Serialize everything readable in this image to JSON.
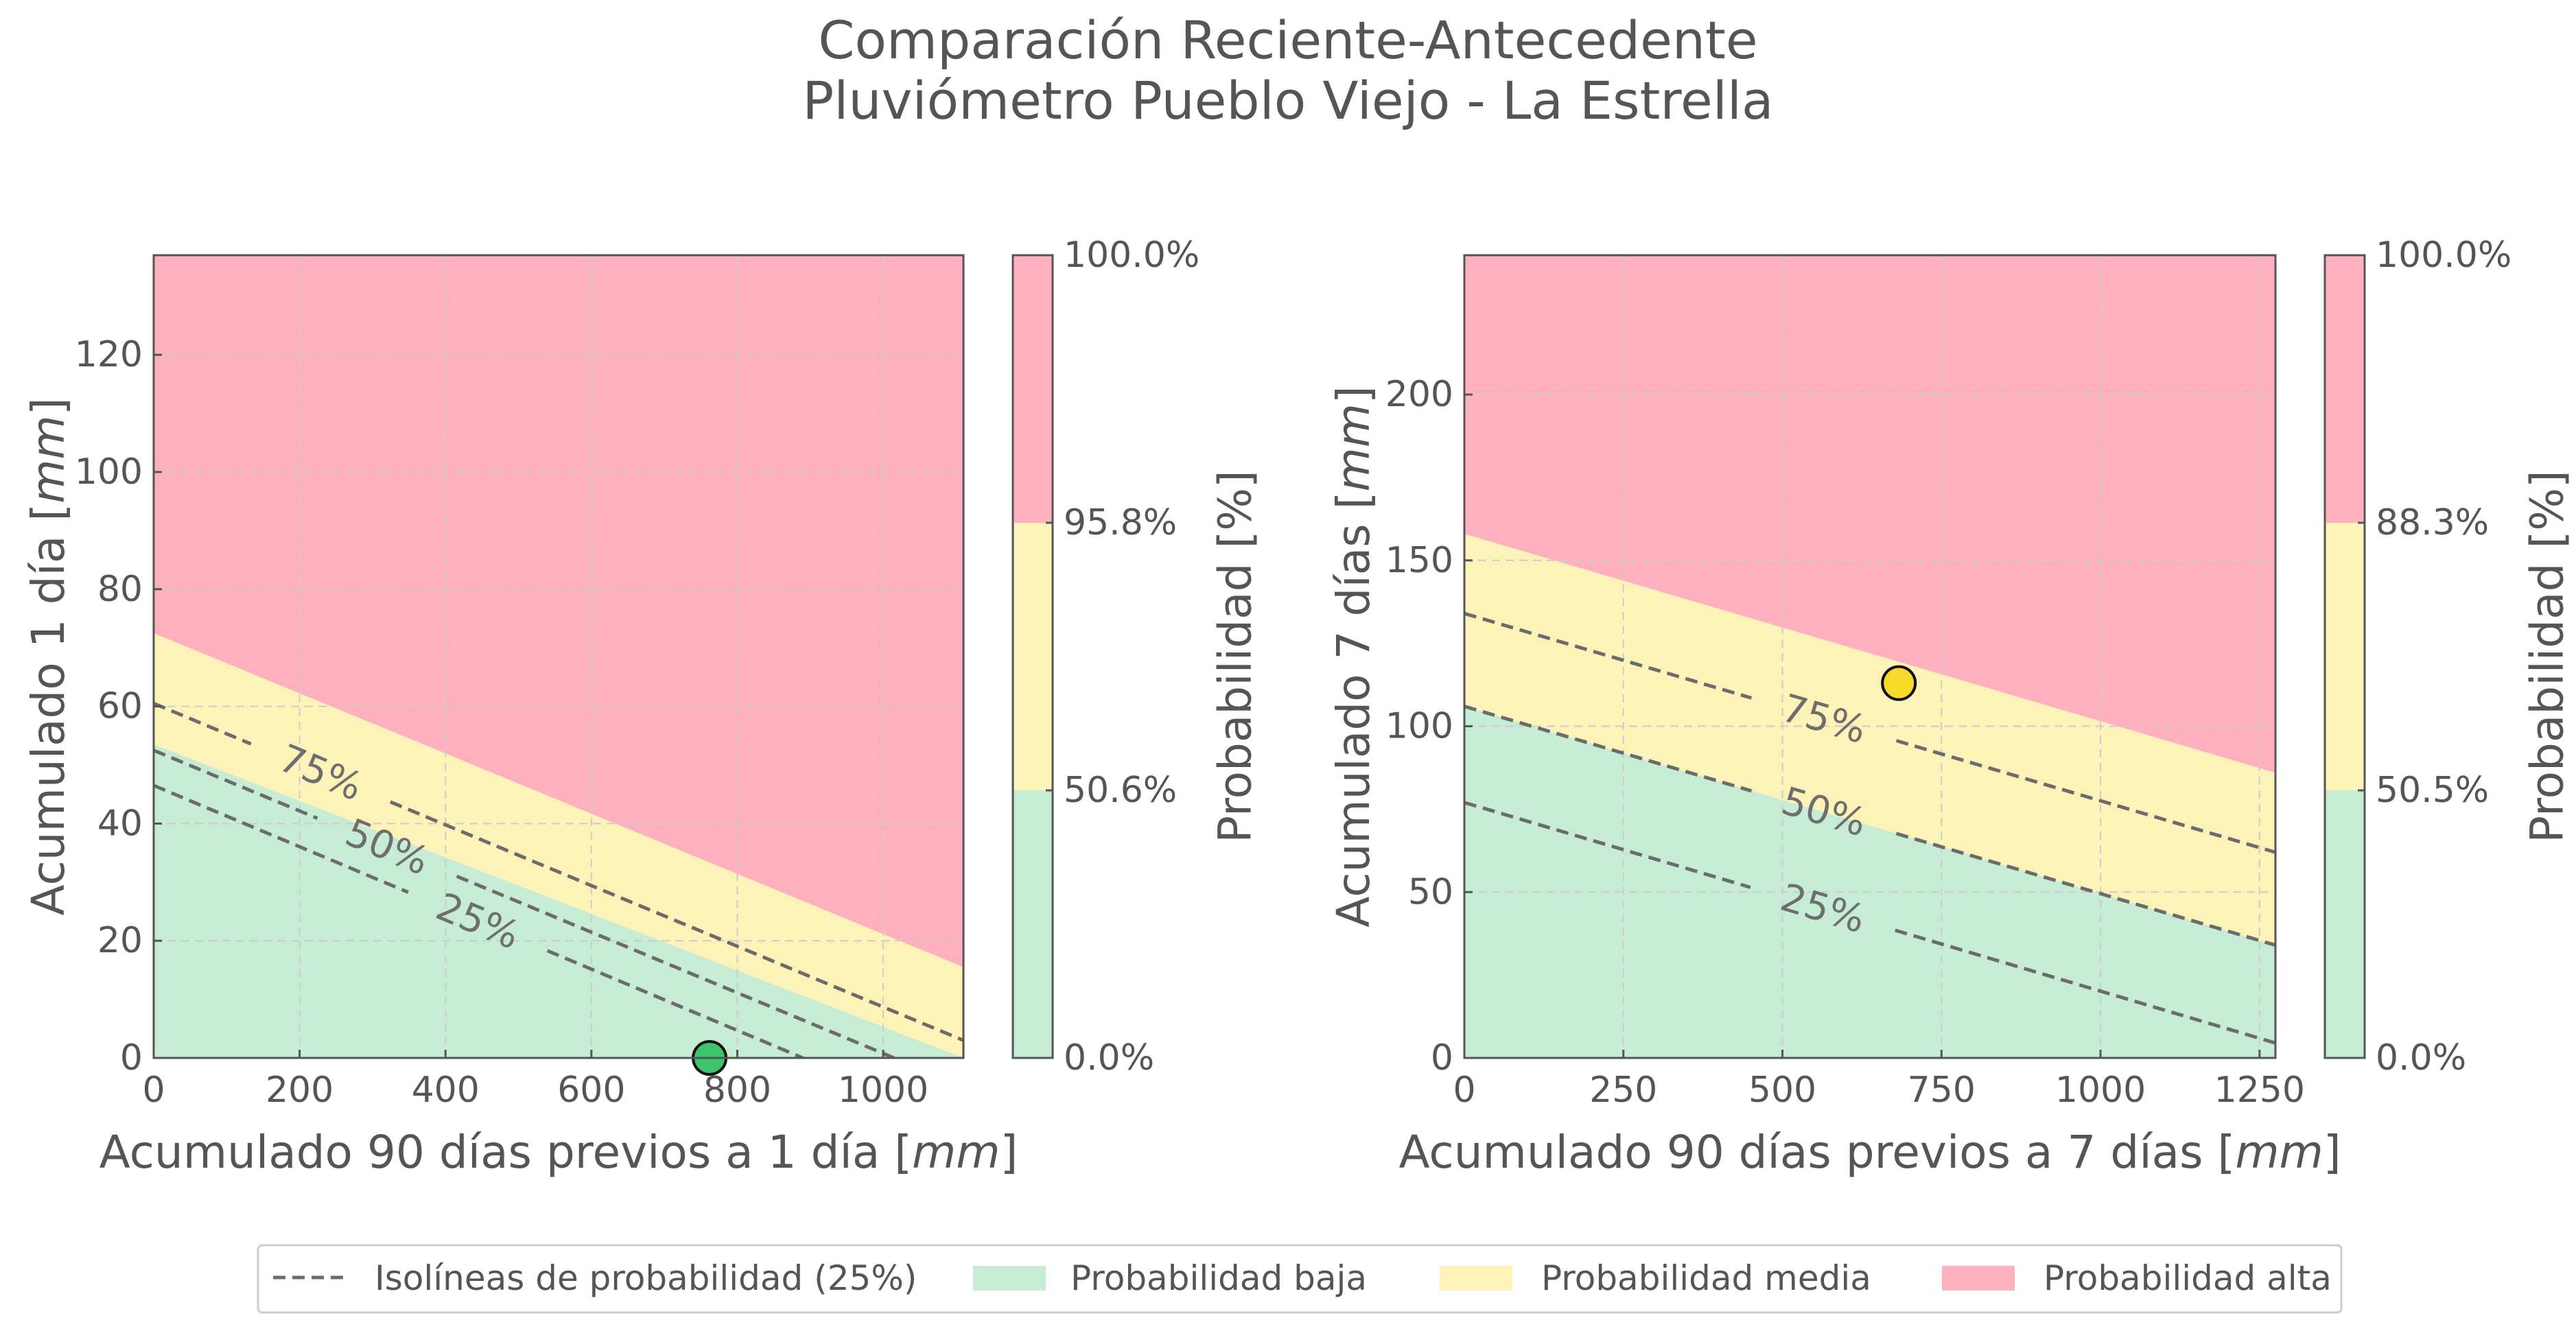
{
  "title": {
    "line1": "Comparación Reciente-Antecedente",
    "line2": "Pluviómetro Pueblo Viejo - La Estrella"
  },
  "colors": {
    "low": "#c6ecd5",
    "medium": "#fdf2b8",
    "high": "#ffb0bf",
    "grid": "#cccccc",
    "contour": "#6b6b6b",
    "spine": "#555555",
    "point_left": "#3cc46e",
    "point_right": "#f7d92a"
  },
  "chart_data": [
    {
      "type": "contour",
      "xlabel": "Acumulado 90 días previos a 1 día [mm]",
      "ylabel": "Acumulado 1 día [mm]",
      "xlim": [
        0,
        1110
      ],
      "ylim": [
        0,
        137
      ],
      "xticks": [
        0,
        200,
        400,
        600,
        800,
        1000
      ],
      "yticks": [
        0,
        20,
        40,
        60,
        80,
        100,
        120
      ],
      "grid": true,
      "regions": {
        "medium_boundary": [
          [
            0,
            53.5
          ],
          [
            1110,
            0
          ]
        ],
        "high_boundary": [
          [
            0,
            72.5
          ],
          [
            1110,
            15.5
          ]
        ]
      },
      "isolines": [
        {
          "level": "25%",
          "points": [
            [
              0,
              46.5
            ],
            [
              890,
              0
            ]
          ],
          "label_at": [
            445,
            23.5
          ]
        },
        {
          "level": "50%",
          "points": [
            [
              0,
              52.5
            ],
            [
              1015,
              0
            ]
          ],
          "label_at": [
            320,
            36
          ]
        },
        {
          "level": "75%",
          "points": [
            [
              0,
              60.5
            ],
            [
              1110,
              3
            ]
          ],
          "label_at": [
            230,
            49
          ]
        }
      ],
      "point": {
        "x": 762,
        "y": 0,
        "class": "Probabilidad baja"
      },
      "colorbar": {
        "label": "Probabilidad [%]",
        "ticks": [
          "0.0%",
          "50.6%",
          "95.8%",
          "100.0%"
        ]
      }
    },
    {
      "type": "contour",
      "xlabel": "Acumulado 90 días previos a 7 días [mm]",
      "ylabel": "Acumulado 7 días [mm]",
      "xlim": [
        0,
        1275
      ],
      "ylim": [
        0,
        242
      ],
      "xticks": [
        0,
        250,
        500,
        750,
        1000,
        1250
      ],
      "yticks": [
        0,
        50,
        100,
        150,
        200
      ],
      "grid": true,
      "regions": {
        "medium_boundary": [
          [
            0,
            106
          ],
          [
            1275,
            34
          ]
        ],
        "high_boundary": [
          [
            0,
            158
          ],
          [
            1275,
            86
          ]
        ]
      },
      "isolines": [
        {
          "level": "25%",
          "points": [
            [
              0,
              77
            ],
            [
              1275,
              4.5
            ]
          ],
          "label_at": [
            565,
            46
          ]
        },
        {
          "level": "50%",
          "points": [
            [
              0,
              106
            ],
            [
              1275,
              34
            ]
          ],
          "label_at": [
            565,
            74
          ]
        },
        {
          "level": "75%",
          "points": [
            [
              0,
              134
            ],
            [
              1275,
              62
            ]
          ],
          "label_at": [
            565,
            102
          ]
        }
      ],
      "point": {
        "x": 683,
        "y": 113,
        "class": "Probabilidad media"
      },
      "colorbar": {
        "label": "Probabilidad [%]",
        "ticks": [
          "0.0%",
          "50.5%",
          "88.3%",
          "100.0%"
        ]
      }
    }
  ],
  "legend": {
    "isolines": "Isolíneas de probabilidad (25%)",
    "low": "Probabilidad baja",
    "medium": "Probabilidad media",
    "high": "Probabilidad alta"
  }
}
